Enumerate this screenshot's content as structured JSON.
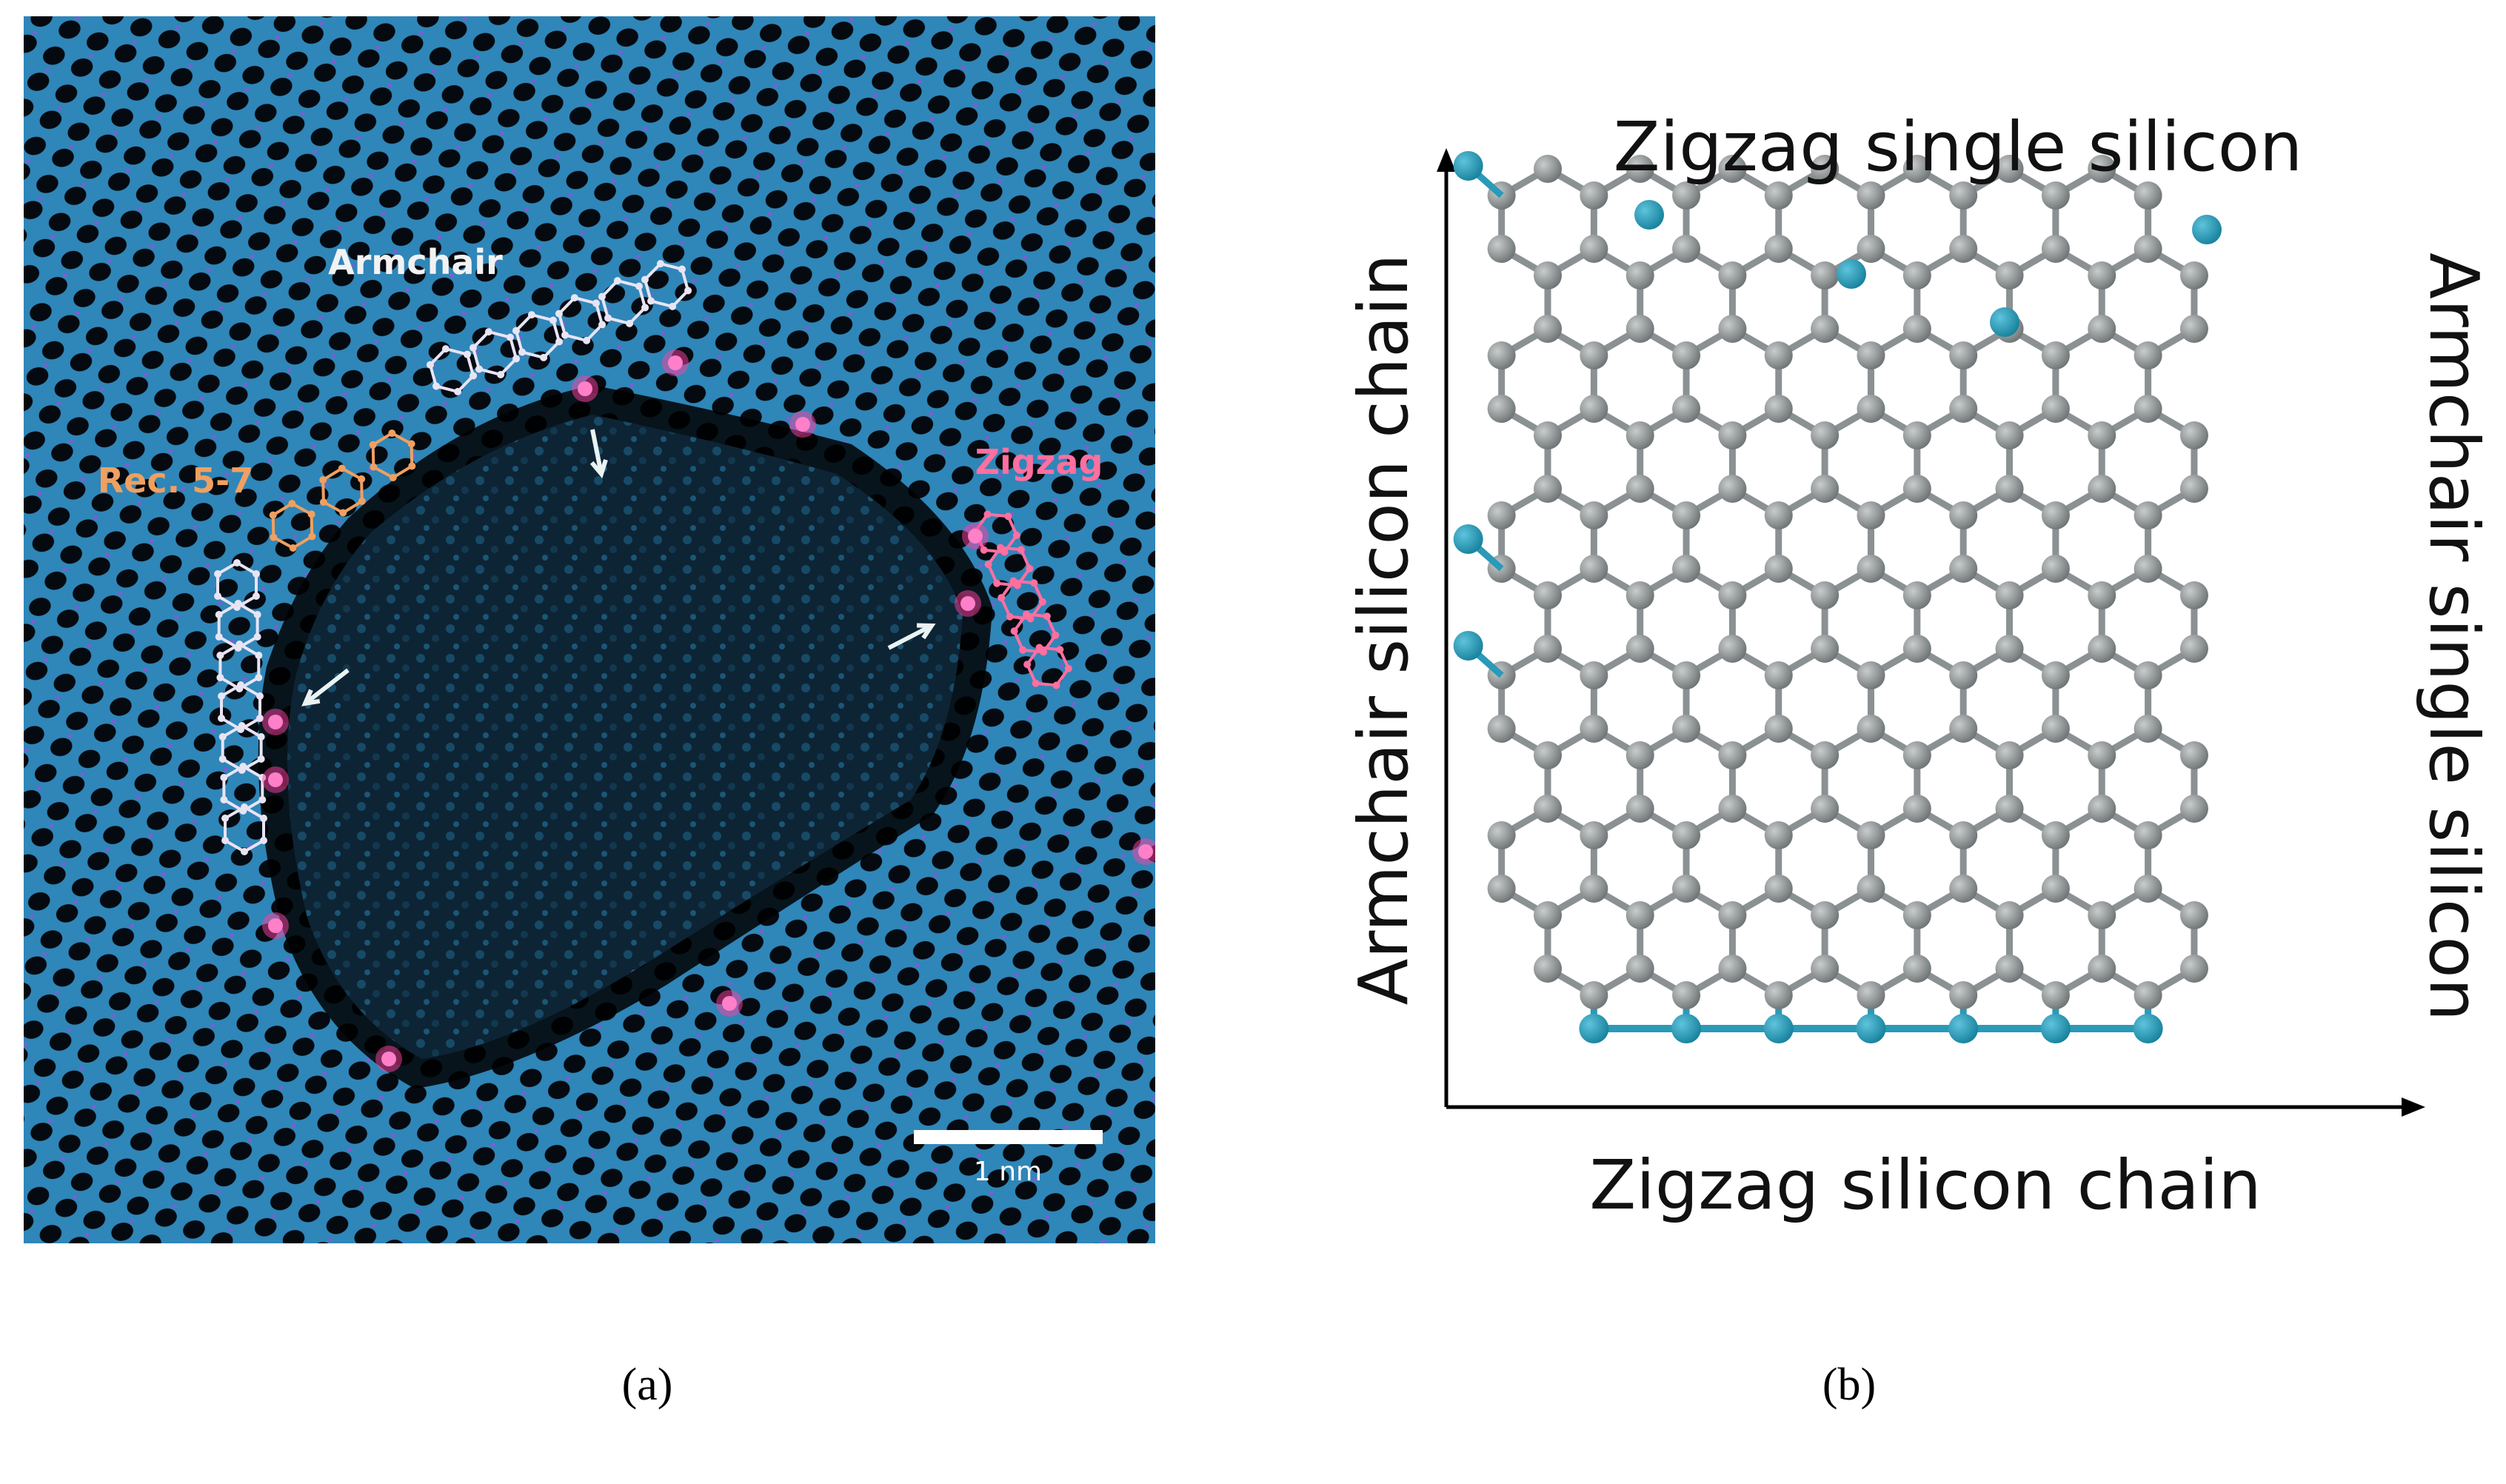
{
  "panel_a": {
    "labels": {
      "armchair": "Armchair",
      "rec57": "Rec. 5-7",
      "zigzag": "Zigzag"
    },
    "scale_bar": "1 nm",
    "caption": "(a)"
  },
  "panel_b": {
    "title_top": "Zigzag single silicon",
    "label_left": "Armchair silicon chain",
    "label_right": "Armchair single silicon",
    "label_bottom": "Zigzag silicon chain",
    "caption": "(b)"
  }
}
